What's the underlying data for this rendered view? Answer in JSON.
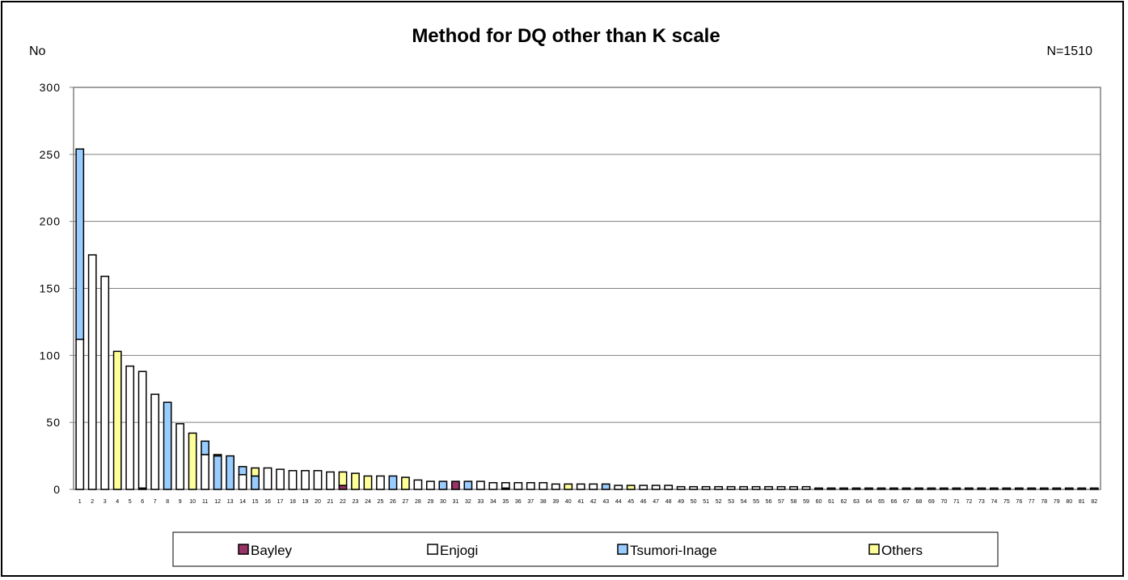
{
  "chart_data": {
    "type": "bar",
    "stacked": true,
    "title": "Method for DQ other than K scale",
    "ylabel": "No",
    "annotation": "N=1510",
    "ylim": [
      0,
      300
    ],
    "yticks": [
      "0",
      "50",
      "100",
      "150",
      "200",
      "250",
      "300"
    ],
    "grid": true,
    "legend_position": "bottom",
    "categories": [
      "1",
      "2",
      "3",
      "4",
      "5",
      "6",
      "7",
      "8",
      "9",
      "10",
      "11",
      "12",
      "13",
      "14",
      "15",
      "16",
      "17",
      "18",
      "19",
      "20",
      "21",
      "22",
      "23",
      "24",
      "25",
      "26",
      "27",
      "28",
      "29",
      "30",
      "31",
      "32",
      "33",
      "34",
      "35",
      "36",
      "37",
      "38",
      "39",
      "40",
      "41",
      "42",
      "43",
      "44",
      "45",
      "46",
      "47",
      "48",
      "49",
      "50",
      "51",
      "52",
      "53",
      "54",
      "55",
      "56",
      "57",
      "58",
      "59",
      "60",
      "61",
      "62",
      "63",
      "64",
      "65",
      "66",
      "67",
      "68",
      "69",
      "70",
      "71",
      "72",
      "73",
      "74",
      "75",
      "76",
      "77",
      "78",
      "79",
      "80",
      "81",
      "82"
    ],
    "series": [
      {
        "name": "Bayley",
        "color": "#993366",
        "values": [
          0,
          0,
          0,
          0,
          0,
          1,
          0,
          0,
          0,
          0,
          0,
          0,
          0,
          0,
          0,
          0,
          0,
          0,
          0,
          0,
          0,
          3,
          0,
          0,
          0,
          0,
          0,
          0,
          0,
          0,
          6,
          0,
          0,
          0,
          1,
          0,
          0,
          0,
          0,
          0,
          0,
          0,
          0,
          0,
          0,
          0,
          0,
          0,
          0,
          0,
          0,
          0,
          0,
          0,
          0,
          0,
          0,
          0,
          0,
          0,
          0,
          0,
          0,
          0,
          0,
          0,
          0,
          0,
          0,
          0,
          0,
          0,
          0,
          0,
          0,
          0,
          0,
          0,
          0,
          0,
          0,
          0
        ]
      },
      {
        "name": "Enjogi",
        "color": "#ffffff",
        "values": [
          112,
          175,
          159,
          0,
          92,
          87,
          71,
          0,
          49,
          0,
          26,
          0,
          0,
          11,
          0,
          16,
          15,
          14,
          14,
          14,
          13,
          0,
          0,
          0,
          10,
          0,
          0,
          7,
          6,
          0,
          0,
          0,
          6,
          5,
          4,
          5,
          5,
          5,
          4,
          0,
          4,
          4,
          0,
          3,
          0,
          3,
          3,
          3,
          2,
          2,
          2,
          2,
          2,
          2,
          2,
          2,
          2,
          2,
          2,
          1,
          1,
          1,
          1,
          1,
          1,
          1,
          1,
          1,
          1,
          1,
          1,
          1,
          1,
          1,
          1,
          1,
          1,
          1,
          1,
          1,
          1,
          1
        ]
      },
      {
        "name": "Tsumori-Inage",
        "color": "#99ccff",
        "values": [
          142,
          0,
          0,
          0,
          0,
          0,
          0,
          65,
          0,
          0,
          10,
          25,
          25,
          6,
          10,
          0,
          0,
          0,
          0,
          0,
          0,
          0,
          0,
          0,
          0,
          10,
          0,
          0,
          0,
          6,
          0,
          6,
          0,
          0,
          0,
          0,
          0,
          0,
          0,
          0,
          0,
          0,
          4,
          0,
          0,
          0,
          0,
          0,
          0,
          0,
          0,
          0,
          0,
          0,
          0,
          0,
          0,
          0,
          0,
          0,
          0,
          0,
          0,
          0,
          0,
          0,
          0,
          0,
          0,
          0,
          0,
          0,
          0,
          0,
          0,
          0,
          0,
          0,
          0,
          0,
          0,
          0
        ]
      },
      {
        "name": "Others",
        "color": "#ffff99",
        "values": [
          0,
          0,
          0,
          103,
          0,
          0,
          0,
          0,
          0,
          42,
          0,
          1,
          0,
          0,
          6,
          0,
          0,
          0,
          0,
          0,
          0,
          10,
          12,
          10,
          0,
          0,
          9,
          0,
          0,
          0,
          0,
          0,
          0,
          0,
          0,
          0,
          0,
          0,
          0,
          4,
          0,
          0,
          0,
          0,
          3,
          0,
          0,
          0,
          0,
          0,
          0,
          0,
          0,
          0,
          0,
          0,
          0,
          0,
          0,
          0,
          0,
          0,
          0,
          0,
          0,
          0,
          0,
          0,
          0,
          0,
          0,
          0,
          0,
          0,
          0,
          0,
          0,
          0,
          0,
          0,
          0,
          0
        ]
      }
    ]
  }
}
